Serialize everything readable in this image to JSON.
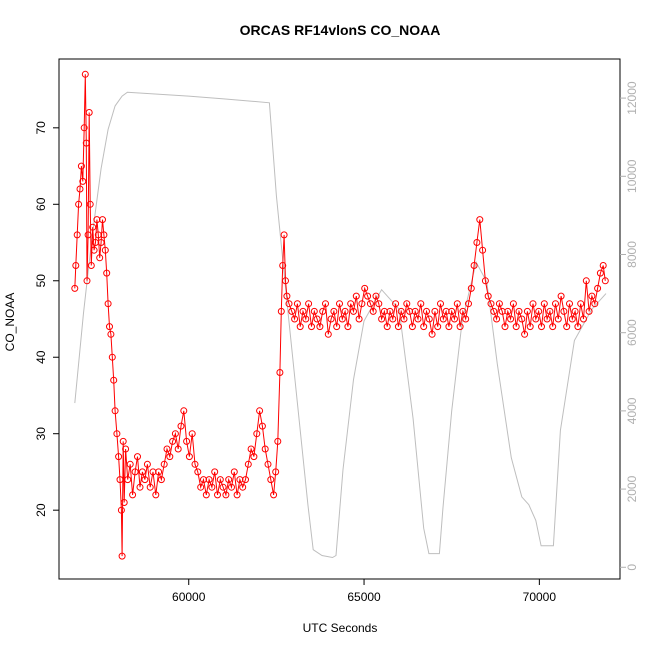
{
  "chart_data": {
    "type": "line",
    "title": "ORCAS RF14vlonS CO_NOAA",
    "xlabel": "UTC Seconds",
    "ylabel": "CO_NOAA",
    "xlim": [
      56300,
      72300
    ],
    "ylim": [
      11,
      79
    ],
    "y2lim": [
      -300,
      13000
    ],
    "x_ticks": [
      60000,
      65000,
      70000
    ],
    "y_ticks": [
      20,
      30,
      40,
      50,
      60,
      70
    ],
    "y2_ticks": [
      0,
      2000,
      4000,
      6000,
      8000,
      10000,
      12000
    ],
    "grid": false,
    "legend": "none",
    "colors": {
      "co": "#ff0000",
      "altitude": "#bebebe"
    },
    "series": [
      {
        "role": "primary",
        "style": "line+open-circles",
        "points": [
          [
            56750,
            49
          ],
          [
            56780,
            52
          ],
          [
            56820,
            56
          ],
          [
            56860,
            60
          ],
          [
            56900,
            62
          ],
          [
            56940,
            65
          ],
          [
            56980,
            63
          ],
          [
            57020,
            70
          ],
          [
            57050,
            77
          ],
          [
            57080,
            68
          ],
          [
            57100,
            50
          ],
          [
            57130,
            56
          ],
          [
            57160,
            72
          ],
          [
            57190,
            60
          ],
          [
            57220,
            52
          ],
          [
            57260,
            57
          ],
          [
            57300,
            54
          ],
          [
            57340,
            55
          ],
          [
            57380,
            58
          ],
          [
            57420,
            56
          ],
          [
            57460,
            53
          ],
          [
            57500,
            55
          ],
          [
            57540,
            58
          ],
          [
            57580,
            56
          ],
          [
            57620,
            54
          ],
          [
            57660,
            51
          ],
          [
            57700,
            47
          ],
          [
            57740,
            44
          ],
          [
            57780,
            43
          ],
          [
            57820,
            40
          ],
          [
            57860,
            37
          ],
          [
            57900,
            33
          ],
          [
            57950,
            30
          ],
          [
            58000,
            27
          ],
          [
            58040,
            24
          ],
          [
            58080,
            20
          ],
          [
            58100,
            14
          ],
          [
            58130,
            29
          ],
          [
            58160,
            21
          ],
          [
            58200,
            28
          ],
          [
            58260,
            24
          ],
          [
            58330,
            26
          ],
          [
            58400,
            22
          ],
          [
            58470,
            25
          ],
          [
            58540,
            27
          ],
          [
            58610,
            23
          ],
          [
            58680,
            25
          ],
          [
            58750,
            24
          ],
          [
            58820,
            26
          ],
          [
            58900,
            23
          ],
          [
            58980,
            25
          ],
          [
            59060,
            22
          ],
          [
            59140,
            25
          ],
          [
            59220,
            24
          ],
          [
            59300,
            26
          ],
          [
            59380,
            28
          ],
          [
            59460,
            27
          ],
          [
            59540,
            29
          ],
          [
            59620,
            30
          ],
          [
            59700,
            28
          ],
          [
            59780,
            31
          ],
          [
            59860,
            33
          ],
          [
            59940,
            29
          ],
          [
            60020,
            27
          ],
          [
            60100,
            30
          ],
          [
            60180,
            26
          ],
          [
            60260,
            25
          ],
          [
            60340,
            23
          ],
          [
            60420,
            24
          ],
          [
            60500,
            22
          ],
          [
            60580,
            24
          ],
          [
            60660,
            23
          ],
          [
            60740,
            25
          ],
          [
            60820,
            22
          ],
          [
            60900,
            24
          ],
          [
            60980,
            23
          ],
          [
            61060,
            22
          ],
          [
            61140,
            24
          ],
          [
            61220,
            23
          ],
          [
            61300,
            25
          ],
          [
            61380,
            22
          ],
          [
            61460,
            24
          ],
          [
            61540,
            23
          ],
          [
            61620,
            24
          ],
          [
            61700,
            26
          ],
          [
            61780,
            28
          ],
          [
            61860,
            27
          ],
          [
            61940,
            30
          ],
          [
            62020,
            33
          ],
          [
            62100,
            31
          ],
          [
            62180,
            28
          ],
          [
            62260,
            26
          ],
          [
            62340,
            24
          ],
          [
            62420,
            22
          ],
          [
            62480,
            25
          ],
          [
            62540,
            29
          ],
          [
            62600,
            38
          ],
          [
            62640,
            46
          ],
          [
            62680,
            52
          ],
          [
            62720,
            56
          ],
          [
            62760,
            50
          ],
          [
            62800,
            48
          ],
          [
            62860,
            47
          ],
          [
            62940,
            46
          ],
          [
            63020,
            45
          ],
          [
            63100,
            47
          ],
          [
            63180,
            44
          ],
          [
            63260,
            46
          ],
          [
            63340,
            45
          ],
          [
            63420,
            47
          ],
          [
            63500,
            44
          ],
          [
            63580,
            46
          ],
          [
            63660,
            45
          ],
          [
            63740,
            44
          ],
          [
            63820,
            46
          ],
          [
            63900,
            47
          ],
          [
            63980,
            43
          ],
          [
            64060,
            45
          ],
          [
            64140,
            46
          ],
          [
            64220,
            44
          ],
          [
            64300,
            47
          ],
          [
            64380,
            45
          ],
          [
            64460,
            46
          ],
          [
            64540,
            44
          ],
          [
            64620,
            47
          ],
          [
            64700,
            46
          ],
          [
            64780,
            48
          ],
          [
            64860,
            45
          ],
          [
            64940,
            47
          ],
          [
            65020,
            49
          ],
          [
            65100,
            48
          ],
          [
            65180,
            47
          ],
          [
            65260,
            46
          ],
          [
            65340,
            48
          ],
          [
            65420,
            47
          ],
          [
            65500,
            45
          ],
          [
            65580,
            46
          ],
          [
            65660,
            44
          ],
          [
            65740,
            46
          ],
          [
            65820,
            45
          ],
          [
            65900,
            47
          ],
          [
            65980,
            44
          ],
          [
            66060,
            46
          ],
          [
            66140,
            45
          ],
          [
            66220,
            47
          ],
          [
            66300,
            46
          ],
          [
            66380,
            44
          ],
          [
            66460,
            46
          ],
          [
            66540,
            45
          ],
          [
            66620,
            47
          ],
          [
            66700,
            44
          ],
          [
            66780,
            46
          ],
          [
            66860,
            45
          ],
          [
            66940,
            43
          ],
          [
            67020,
            46
          ],
          [
            67100,
            44
          ],
          [
            67180,
            47
          ],
          [
            67260,
            45
          ],
          [
            67340,
            46
          ],
          [
            67420,
            44
          ],
          [
            67500,
            46
          ],
          [
            67580,
            45
          ],
          [
            67660,
            47
          ],
          [
            67740,
            44
          ],
          [
            67820,
            46
          ],
          [
            67900,
            45
          ],
          [
            67980,
            47
          ],
          [
            68060,
            49
          ],
          [
            68140,
            52
          ],
          [
            68220,
            55
          ],
          [
            68300,
            58
          ],
          [
            68380,
            54
          ],
          [
            68460,
            50
          ],
          [
            68540,
            48
          ],
          [
            68620,
            47
          ],
          [
            68700,
            46
          ],
          [
            68780,
            45
          ],
          [
            68860,
            47
          ],
          [
            68940,
            46
          ],
          [
            69020,
            44
          ],
          [
            69100,
            46
          ],
          [
            69180,
            45
          ],
          [
            69260,
            47
          ],
          [
            69340,
            44
          ],
          [
            69420,
            46
          ],
          [
            69500,
            45
          ],
          [
            69580,
            43
          ],
          [
            69660,
            46
          ],
          [
            69740,
            44
          ],
          [
            69820,
            47
          ],
          [
            69900,
            45
          ],
          [
            69980,
            46
          ],
          [
            70060,
            44
          ],
          [
            70140,
            47
          ],
          [
            70220,
            45
          ],
          [
            70300,
            46
          ],
          [
            70380,
            44
          ],
          [
            70460,
            47
          ],
          [
            70540,
            45
          ],
          [
            70620,
            48
          ],
          [
            70700,
            46
          ],
          [
            70780,
            44
          ],
          [
            70860,
            47
          ],
          [
            70940,
            45
          ],
          [
            71020,
            46
          ],
          [
            71100,
            44
          ],
          [
            71180,
            47
          ],
          [
            71260,
            45
          ],
          [
            71340,
            50
          ],
          [
            71420,
            46
          ],
          [
            71500,
            48
          ],
          [
            71580,
            47
          ],
          [
            71660,
            49
          ],
          [
            71740,
            51
          ],
          [
            71820,
            52
          ],
          [
            71880,
            50
          ]
        ]
      },
      {
        "role": "secondary",
        "axis": "right",
        "style": "line",
        "points": [
          [
            56750,
            4200
          ],
          [
            57000,
            6500
          ],
          [
            57250,
            8500
          ],
          [
            57500,
            10200
          ],
          [
            57700,
            11200
          ],
          [
            57900,
            11800
          ],
          [
            58100,
            12050
          ],
          [
            58250,
            12150
          ],
          [
            60000,
            12050
          ],
          [
            61000,
            11980
          ],
          [
            61800,
            11920
          ],
          [
            62300,
            11880
          ],
          [
            62500,
            9500
          ],
          [
            62800,
            6800
          ],
          [
            63100,
            4200
          ],
          [
            63400,
            1600
          ],
          [
            63550,
            450
          ],
          [
            63800,
            300
          ],
          [
            64100,
            250
          ],
          [
            64200,
            300
          ],
          [
            64400,
            2500
          ],
          [
            64700,
            4800
          ],
          [
            65000,
            6300
          ],
          [
            65500,
            7100
          ],
          [
            66000,
            6600
          ],
          [
            66400,
            3800
          ],
          [
            66700,
            1000
          ],
          [
            66850,
            350
          ],
          [
            67150,
            350
          ],
          [
            67250,
            1500
          ],
          [
            67500,
            4000
          ],
          [
            67800,
            6300
          ],
          [
            68200,
            7800
          ],
          [
            68500,
            7300
          ],
          [
            68800,
            5200
          ],
          [
            69200,
            2800
          ],
          [
            69500,
            1800
          ],
          [
            69700,
            1600
          ],
          [
            69900,
            1200
          ],
          [
            70050,
            550
          ],
          [
            70400,
            550
          ],
          [
            70600,
            3500
          ],
          [
            71000,
            5800
          ],
          [
            71500,
            6600
          ],
          [
            71900,
            7000
          ]
        ]
      }
    ]
  }
}
